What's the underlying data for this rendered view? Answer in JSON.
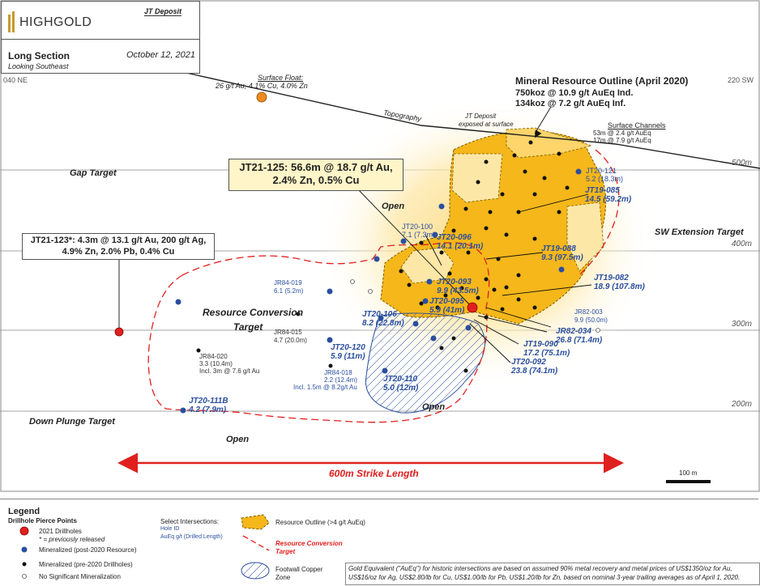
{
  "header": {
    "logo": "HIGHGOLD",
    "deposit": "JT Deposit",
    "section": "Long Section",
    "looking": "Looking Southeast",
    "date": "October 12, 2021"
  },
  "section_ends": {
    "left": "040 NE",
    "right": "220 SW"
  },
  "elevations": [
    "500m",
    "400m",
    "300m",
    "200m"
  ],
  "surface_float": {
    "title": "Surface Float:",
    "grades": "26 g/t Au, 4.1% Cu, 4.0% Zn"
  },
  "topography_label": "Topography",
  "jt_exposed": [
    "JT Deposit",
    "exposed at surface"
  ],
  "resource": {
    "title": "Mineral Resource Outline (April 2020)",
    "line1": "750koz @ 10.9 g/t AuEq Ind.",
    "line2": "134koz @ 7.2 g/t AuEq Inf."
  },
  "surface_channels": {
    "title": "Surface Channels",
    "line1": "53m @ 2.4 g/t AuEq",
    "line2": "17m @ 7.9 g/t AuEq"
  },
  "callout_125": {
    "line1": "JT21-125:  56.6m @ 18.7 g/t Au,",
    "line2": "2.4% Zn, 0.5% Cu"
  },
  "callout_123": {
    "line1": "JT21-123*:  4.3m @ 13.1 g/t Au, 200 g/t Ag,",
    "line2": "4.9% Zn, 2.0% Pb, 0.4% Cu"
  },
  "targets": {
    "gap": "Gap Target",
    "sw_ext": "SW Extension Target",
    "rc1": "Resource Conversion",
    "rc2": "Target",
    "down_plunge": "Down Plunge Target",
    "open1": "Open",
    "open2": "Open",
    "open3": "Open"
  },
  "strike_length": "600m Strike Length",
  "scale": "100 m",
  "intersections": [
    {
      "id": "JT20-121",
      "val": "5.2 (18.3m)"
    },
    {
      "id": "JT19-085",
      "val": "14.5 (59.2m)"
    },
    {
      "id": "JT20-100",
      "val": "7.1 (7.3m)"
    },
    {
      "id": "JT20-096",
      "val": "14.1 (20.1m)"
    },
    {
      "id": "JT19-088",
      "val": "9.3 (97.5m)"
    },
    {
      "id": "JR84-019",
      "val": "6.1 (5.2m)"
    },
    {
      "id": "JT20-093",
      "val": "9.9 (43.5m)"
    },
    {
      "id": "JT20-095",
      "val": "5.9 (41m)"
    },
    {
      "id": "JT19-082",
      "val": "18.9 (107.8m)"
    },
    {
      "id": "JT20-106",
      "val": "8.2 (22.8m)"
    },
    {
      "id": "JR82-003",
      "val": "9.9 (50.0m)"
    },
    {
      "id": "JR84-015",
      "val": "4.7 (20.0m)"
    },
    {
      "id": "JR82-034",
      "val": "26.8 (71.4m)"
    },
    {
      "id": "JT19-090",
      "val": "17.2 (75.1m)"
    },
    {
      "id": "JT20-120",
      "val": "5.9 (11m)"
    },
    {
      "id": "JT20-092",
      "val": "23.8 (74.1m)"
    },
    {
      "id": "JR84-020",
      "val": "3.3 (10.4m)",
      "extra": "Incl. 3m @ 7.6 g/t Au"
    },
    {
      "id": "JR84-018",
      "val": "2.2 (12.4m)",
      "extra": "Incl. 1.5m @ 8.2g/t Au"
    },
    {
      "id": "JT20-110",
      "val": "5.0 (12m)"
    },
    {
      "id": "JT20-111B",
      "val": "4.2 (7.9m)"
    }
  ],
  "legend": {
    "title": "Legend",
    "pierce_title": "Drillhole Pierce Points",
    "drill2021": "2021 Drillholes",
    "prev": "* = previously released",
    "post2020": "Mineralized (post-2020 Resource)",
    "pre2020": "Mineralized (pre-2020 Drillholes)",
    "nosig": "No Significant Mineralization",
    "select": "Select Intersections:",
    "hole_id": "Hole ID",
    "aueq": "AuEq g/t (Drilled Length)",
    "outline": "Resource Outline (>4 g/t AuEq)",
    "rc_target": "Resource Conversion",
    "rc_target2": "Target",
    "footwall": "Footwall Copper",
    "footwall2": "Zone",
    "note": "Gold Equivalent (\"AuEq\") for historic intersections are based on assumed 90% metal recovery and metal prices of US$1350/oz for Au, US$16/oz for Ag, US$2.80/lb for Cu, US$1.00/lb for Pb, US$1.20/lb for Zn, based on nominal 3-year trailing averages as of April 1, 2020."
  },
  "colors": {
    "gold": "#f5b71a",
    "blue": "#2a4fa0",
    "red": "#e0201e",
    "orange": "#f08a20"
  }
}
